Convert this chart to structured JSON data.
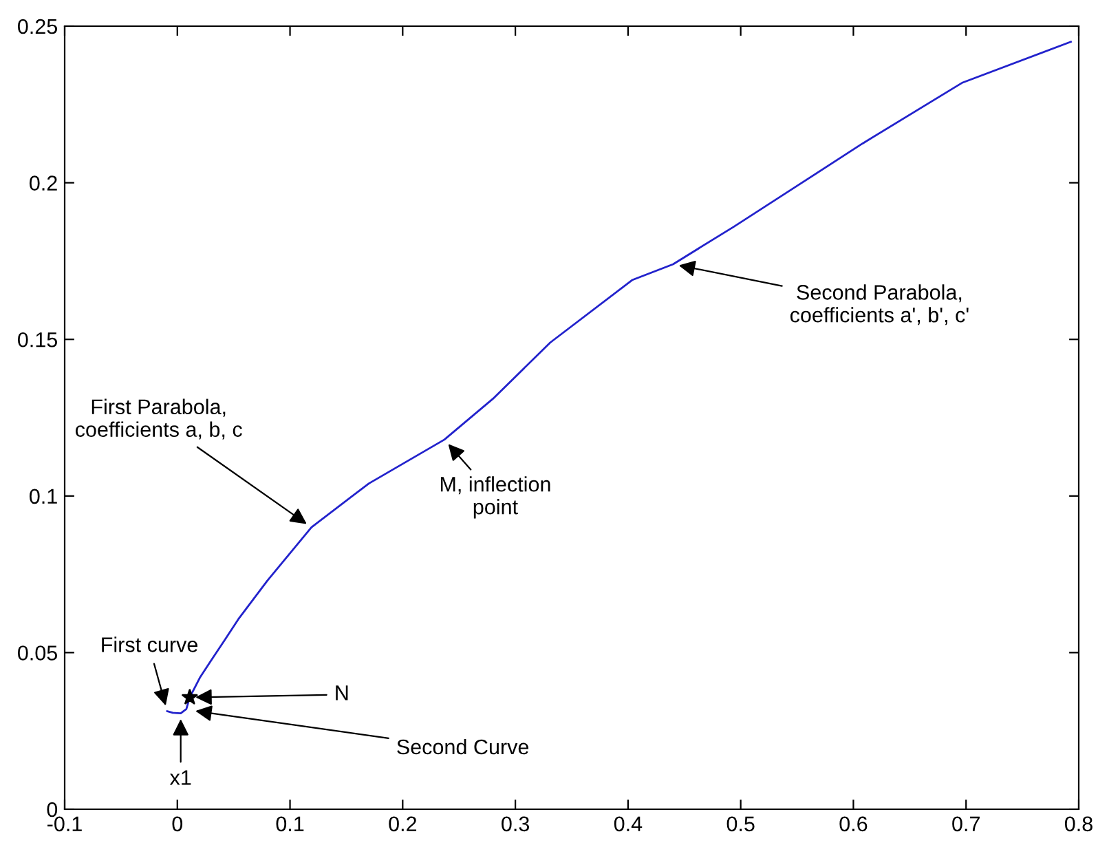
{
  "chart_data": {
    "type": "line",
    "xlim": [
      -0.1,
      0.8
    ],
    "xticks": [
      -0.1,
      0,
      0.1,
      0.2,
      0.3,
      0.4,
      0.5,
      0.6,
      0.7,
      0.8
    ],
    "ylim": [
      0,
      0.25
    ],
    "yticks": [
      0,
      0.05,
      0.1,
      0.15,
      0.2,
      0.25
    ],
    "grid": false,
    "legend": false,
    "series": [
      {
        "color": "#2222cc",
        "marker": "none",
        "line_style": "solid",
        "x": [
          -0.009,
          -0.004,
          0.003,
          0.008,
          0.011,
          0.02,
          0.03,
          0.042,
          0.054,
          0.08,
          0.119,
          0.17,
          0.237,
          0.28,
          0.331,
          0.404,
          0.44,
          0.494,
          0.55,
          0.608,
          0.697,
          0.793
        ],
        "values": [
          0.0313,
          0.0308,
          0.0306,
          0.032,
          0.0357,
          0.042,
          0.0475,
          0.054,
          0.0606,
          0.073,
          0.09,
          0.104,
          0.118,
          0.131,
          0.149,
          0.169,
          0.174,
          0.186,
          0.199,
          0.2125,
          0.232,
          0.245
        ]
      },
      {
        "type": "scatter",
        "color": "#000000",
        "marker": "star",
        "x": [
          0.011
        ],
        "values": [
          0.0357
        ]
      }
    ],
    "annotations": [
      {
        "text": "First curve",
        "x": -0.009,
        "y": 0.0313
      },
      {
        "text": "x1",
        "x": 0.003,
        "y": 0.0306
      },
      {
        "text": "N",
        "x": 0.011,
        "y": 0.0357
      },
      {
        "text": "Second Curve",
        "x": 0.011,
        "y": 0.0316
      },
      {
        "text": "First Parabola,\ncoefficients a, b, c",
        "x": 0.119,
        "y": 0.09
      },
      {
        "text": "M, inflection\npoint",
        "x": 0.237,
        "y": 0.118
      },
      {
        "text": "Second Parabola,\ncoefficients a', b', c'",
        "x": 0.44,
        "y": 0.174
      }
    ]
  }
}
